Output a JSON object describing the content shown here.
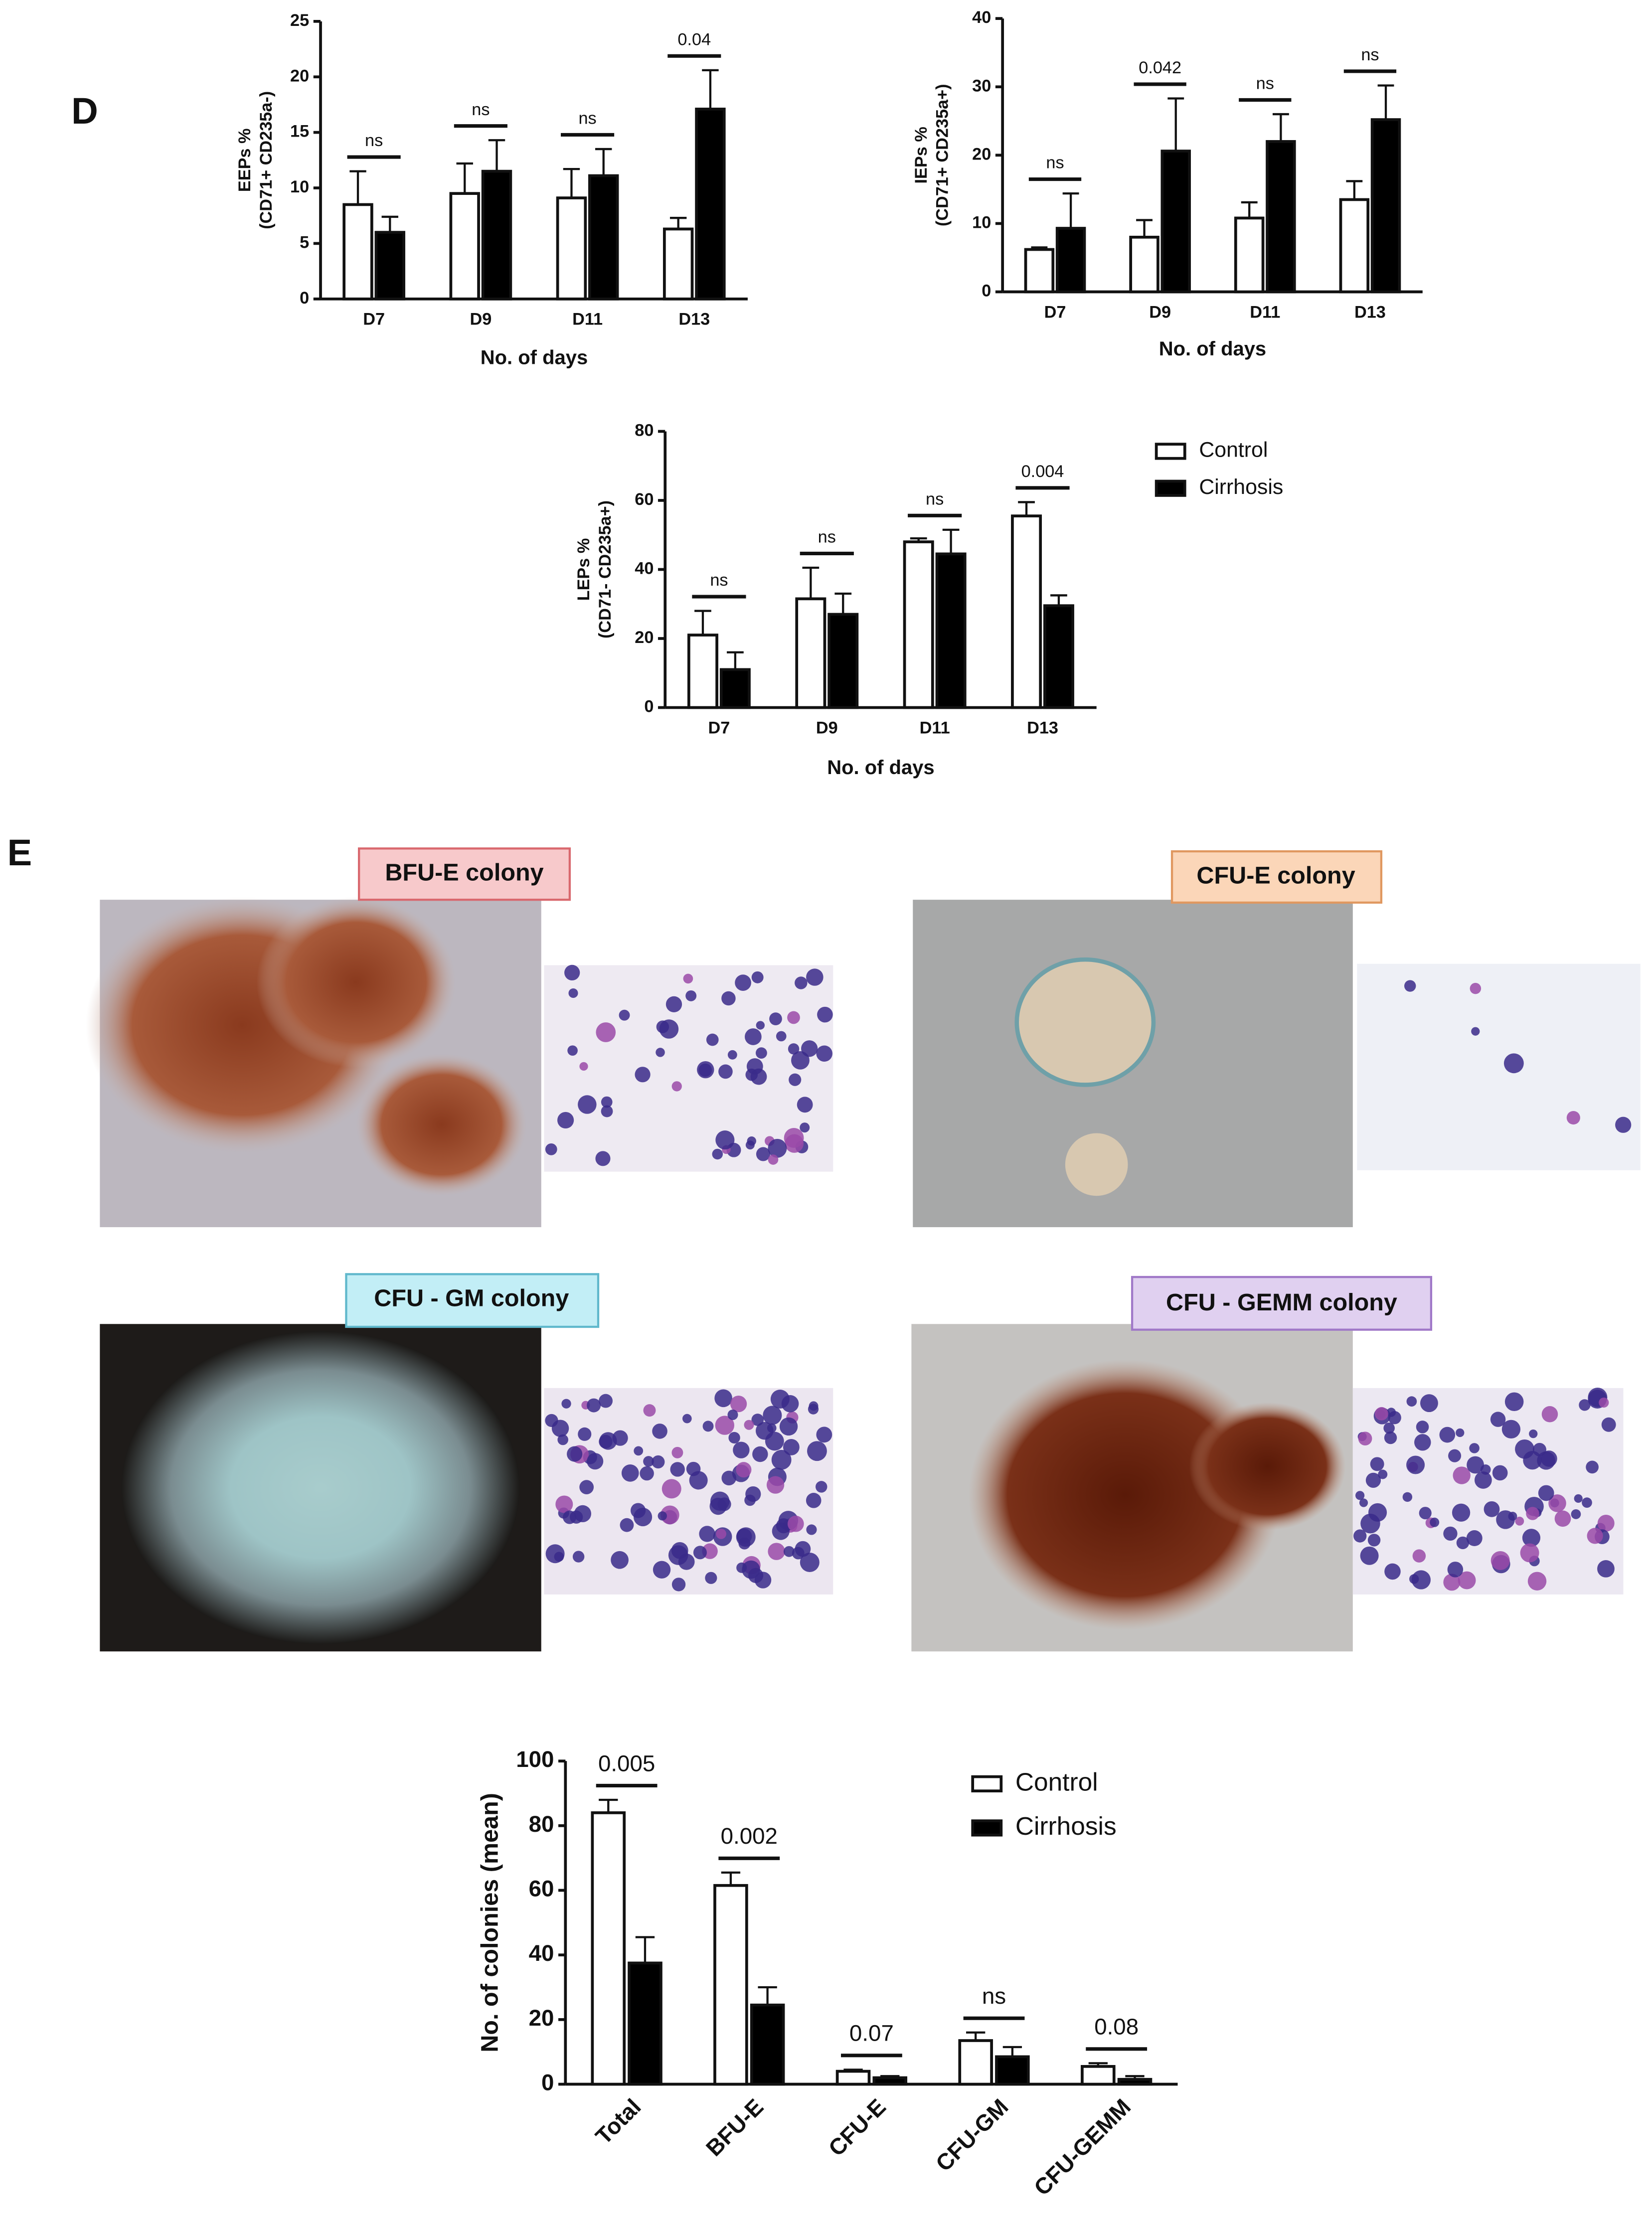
{
  "panels": {
    "d": "D",
    "e": "E"
  },
  "colonies": [
    "BFU-E colony",
    "CFU-E colony",
    "CFU - GM colony",
    "CFU - GEMM colony"
  ],
  "chart_data": [
    {
      "type": "bar",
      "ylabel": [
        "EEPs %",
        "(CD71+ CD235a-)"
      ],
      "xlabel": "No. of days",
      "categories": [
        "D7",
        "D9",
        "D11",
        "D13"
      ],
      "ylim": [
        0,
        25
      ],
      "yticks": [
        0,
        5,
        10,
        15,
        20,
        25
      ],
      "series": [
        {
          "name": "Control",
          "color": "#ffffff",
          "values": [
            8.5,
            9.5,
            9.1,
            6.3
          ],
          "errors": [
            3,
            2.7,
            2.6,
            1
          ]
        },
        {
          "name": "Cirrhosis",
          "color": "#000000",
          "values": [
            6,
            11.5,
            11.1,
            17.1
          ],
          "errors": [
            1.4,
            2.8,
            2.4,
            3.5
          ]
        }
      ],
      "annotations": [
        "ns",
        "ns",
        "ns",
        "0.04"
      ],
      "legend": false
    },
    {
      "type": "bar",
      "ylabel": [
        "IEPs %",
        "(CD71+ CD235a+)"
      ],
      "xlabel": "No. of days",
      "categories": [
        "D7",
        "D9",
        "D11",
        "D13"
      ],
      "ylim": [
        0,
        40
      ],
      "yticks": [
        0,
        10,
        20,
        30,
        40
      ],
      "series": [
        {
          "name": "Control",
          "color": "#ffffff",
          "values": [
            6.2,
            8,
            10.8,
            13.5
          ],
          "errors": [
            0.3,
            2.5,
            2.3,
            2.7
          ]
        },
        {
          "name": "Cirrhosis",
          "color": "#000000",
          "values": [
            9.3,
            20.6,
            22,
            25.2
          ],
          "errors": [
            5.1,
            7.7,
            4,
            5
          ]
        }
      ],
      "annotations": [
        "ns",
        "0.042",
        "ns",
        "ns"
      ],
      "legend": false
    },
    {
      "type": "bar",
      "ylabel": [
        "LEPs %",
        "(CD71- CD235a+)"
      ],
      "xlabel": "No. of days",
      "categories": [
        "D7",
        "D9",
        "D11",
        "D13"
      ],
      "ylim": [
        0,
        80
      ],
      "yticks": [
        0,
        20,
        40,
        60,
        80
      ],
      "series": [
        {
          "name": "Control",
          "color": "#ffffff",
          "values": [
            21,
            31.5,
            48,
            55.5
          ],
          "errors": [
            7,
            9,
            1,
            4
          ]
        },
        {
          "name": "Cirrhosis",
          "color": "#000000",
          "values": [
            11,
            27,
            44.5,
            29.5
          ],
          "errors": [
            5,
            6,
            7,
            3
          ]
        }
      ],
      "annotations": [
        "ns",
        "ns",
        "ns",
        "0.004"
      ],
      "legend": true
    },
    {
      "type": "bar",
      "ylabel": [
        "No. of colonies (mean)"
      ],
      "categories": [
        "Total",
        "BFU-E",
        "CFU-E",
        "CFU-GM",
        "CFU-GEMM"
      ],
      "ylim": [
        0,
        100
      ],
      "yticks": [
        0,
        20,
        40,
        60,
        80,
        100
      ],
      "series": [
        {
          "name": "Control",
          "color": "#ffffff",
          "values": [
            84,
            61.5,
            4,
            13.5,
            5.5
          ],
          "errors": [
            4,
            4,
            0.5,
            2.5,
            1
          ]
        },
        {
          "name": "Cirrhosis",
          "color": "#000000",
          "values": [
            37.5,
            24.5,
            2,
            8.5,
            1.5
          ],
          "errors": [
            8,
            5.5,
            0.5,
            3,
            1
          ]
        }
      ],
      "annotations": [
        "0.005",
        "0.002",
        "0.07",
        "ns",
        "0.08"
      ],
      "legend": true
    }
  ]
}
